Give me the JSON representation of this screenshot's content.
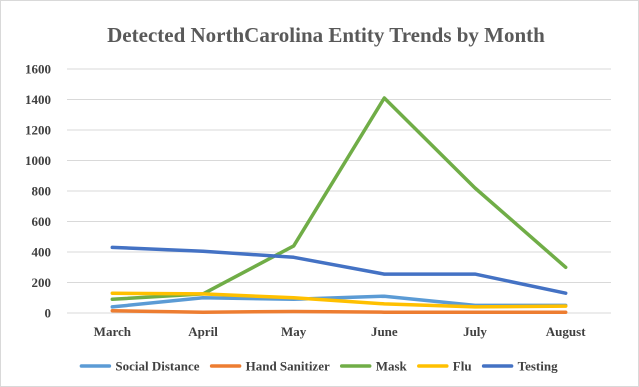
{
  "chart_data": {
    "type": "line",
    "title": "Detected NorthCarolina Entity Trends by Month",
    "xlabel": "",
    "ylabel": "",
    "categories": [
      "March",
      "April",
      "May",
      "June",
      "July",
      "August"
    ],
    "ylim": [
      0,
      1600
    ],
    "yticks": [
      "0",
      "200",
      "400",
      "600",
      "800",
      "1000",
      "1200",
      "1400",
      "1600"
    ],
    "grid": true,
    "legend_position": "bottom",
    "series": [
      {
        "name": "Social Distance",
        "color": "#5B9BD5",
        "values": [
          40,
          100,
          90,
          110,
          50,
          50
        ]
      },
      {
        "name": "Hand Sanitizer",
        "color": "#ED7D31",
        "values": [
          15,
          5,
          10,
          5,
          5,
          5
        ]
      },
      {
        "name": "Mask",
        "color": "#70AD47",
        "values": [
          90,
          125,
          440,
          1410,
          820,
          300
        ]
      },
      {
        "name": "Flu",
        "color": "#FFC000",
        "values": [
          130,
          125,
          100,
          60,
          40,
          45
        ]
      },
      {
        "name": "Testing",
        "color": "#4472C4",
        "values": [
          430,
          405,
          365,
          255,
          255,
          130
        ]
      }
    ]
  }
}
